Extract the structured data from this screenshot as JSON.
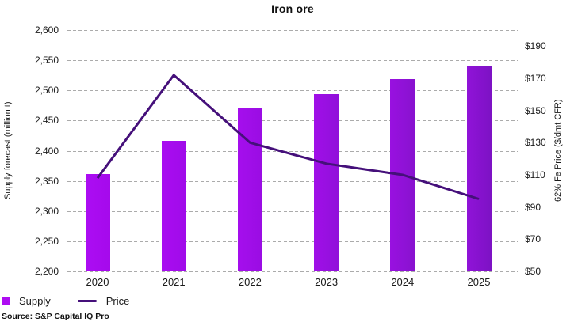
{
  "title": "Iron ore",
  "source": "Source: S&P Capital IQ Pro",
  "legend": {
    "supply_label": "Supply",
    "price_label": "Price"
  },
  "left_axis": {
    "label": "Supply forecast (million t)",
    "tick_labels": [
      "2,600",
      "2,550",
      "2,500",
      "2,450",
      "2,400",
      "2,350",
      "2,300",
      "2,250",
      "2,200"
    ],
    "tick_values": [
      2600,
      2550,
      2500,
      2450,
      2400,
      2350,
      2300,
      2250,
      2200
    ]
  },
  "right_axis": {
    "label": "62% Fe Price ($/dmt CFR)",
    "tick_labels": [
      "$190",
      "$170",
      "$150",
      "$130",
      "$110",
      "$90",
      "$70",
      "$50"
    ],
    "tick_values": [
      190,
      170,
      150,
      130,
      110,
      90,
      70,
      50
    ]
  },
  "chart_data": {
    "type": "bar+line",
    "categories": [
      "2020",
      "2021",
      "2022",
      "2023",
      "2024",
      "2025"
    ],
    "series": [
      {
        "name": "Supply",
        "type": "bar",
        "axis": "left",
        "values": [
          2362,
          2417,
          2472,
          2494,
          2519,
          2540
        ]
      },
      {
        "name": "Price",
        "type": "line",
        "axis": "right",
        "values": [
          108,
          172,
          130,
          117,
          110,
          95
        ]
      }
    ],
    "title": "Iron ore",
    "xlabel": "",
    "left_ylabel": "Supply forecast (million t)",
    "right_ylabel": "62% Fe Price ($/dmt CFR)",
    "left_ylim": [
      2200,
      2600
    ],
    "right_ylim": [
      50,
      200
    ],
    "grid": true,
    "legend_position": "bottom-left"
  },
  "colors": {
    "line": "#45107a",
    "legend_swatch": "#ae0df2",
    "grid": "#ababab",
    "text": "#1a1a1a",
    "bar_gradients": [
      [
        "#ac0cf3",
        "#a50aec"
      ],
      [
        "#a90df1",
        "#a00be9"
      ],
      [
        "#a50eed",
        "#9a0de3"
      ],
      [
        "#a00fe8",
        "#9110da"
      ],
      [
        "#9911e0",
        "#8812cf"
      ],
      [
        "#9013d8",
        "#7d12c4"
      ]
    ]
  }
}
